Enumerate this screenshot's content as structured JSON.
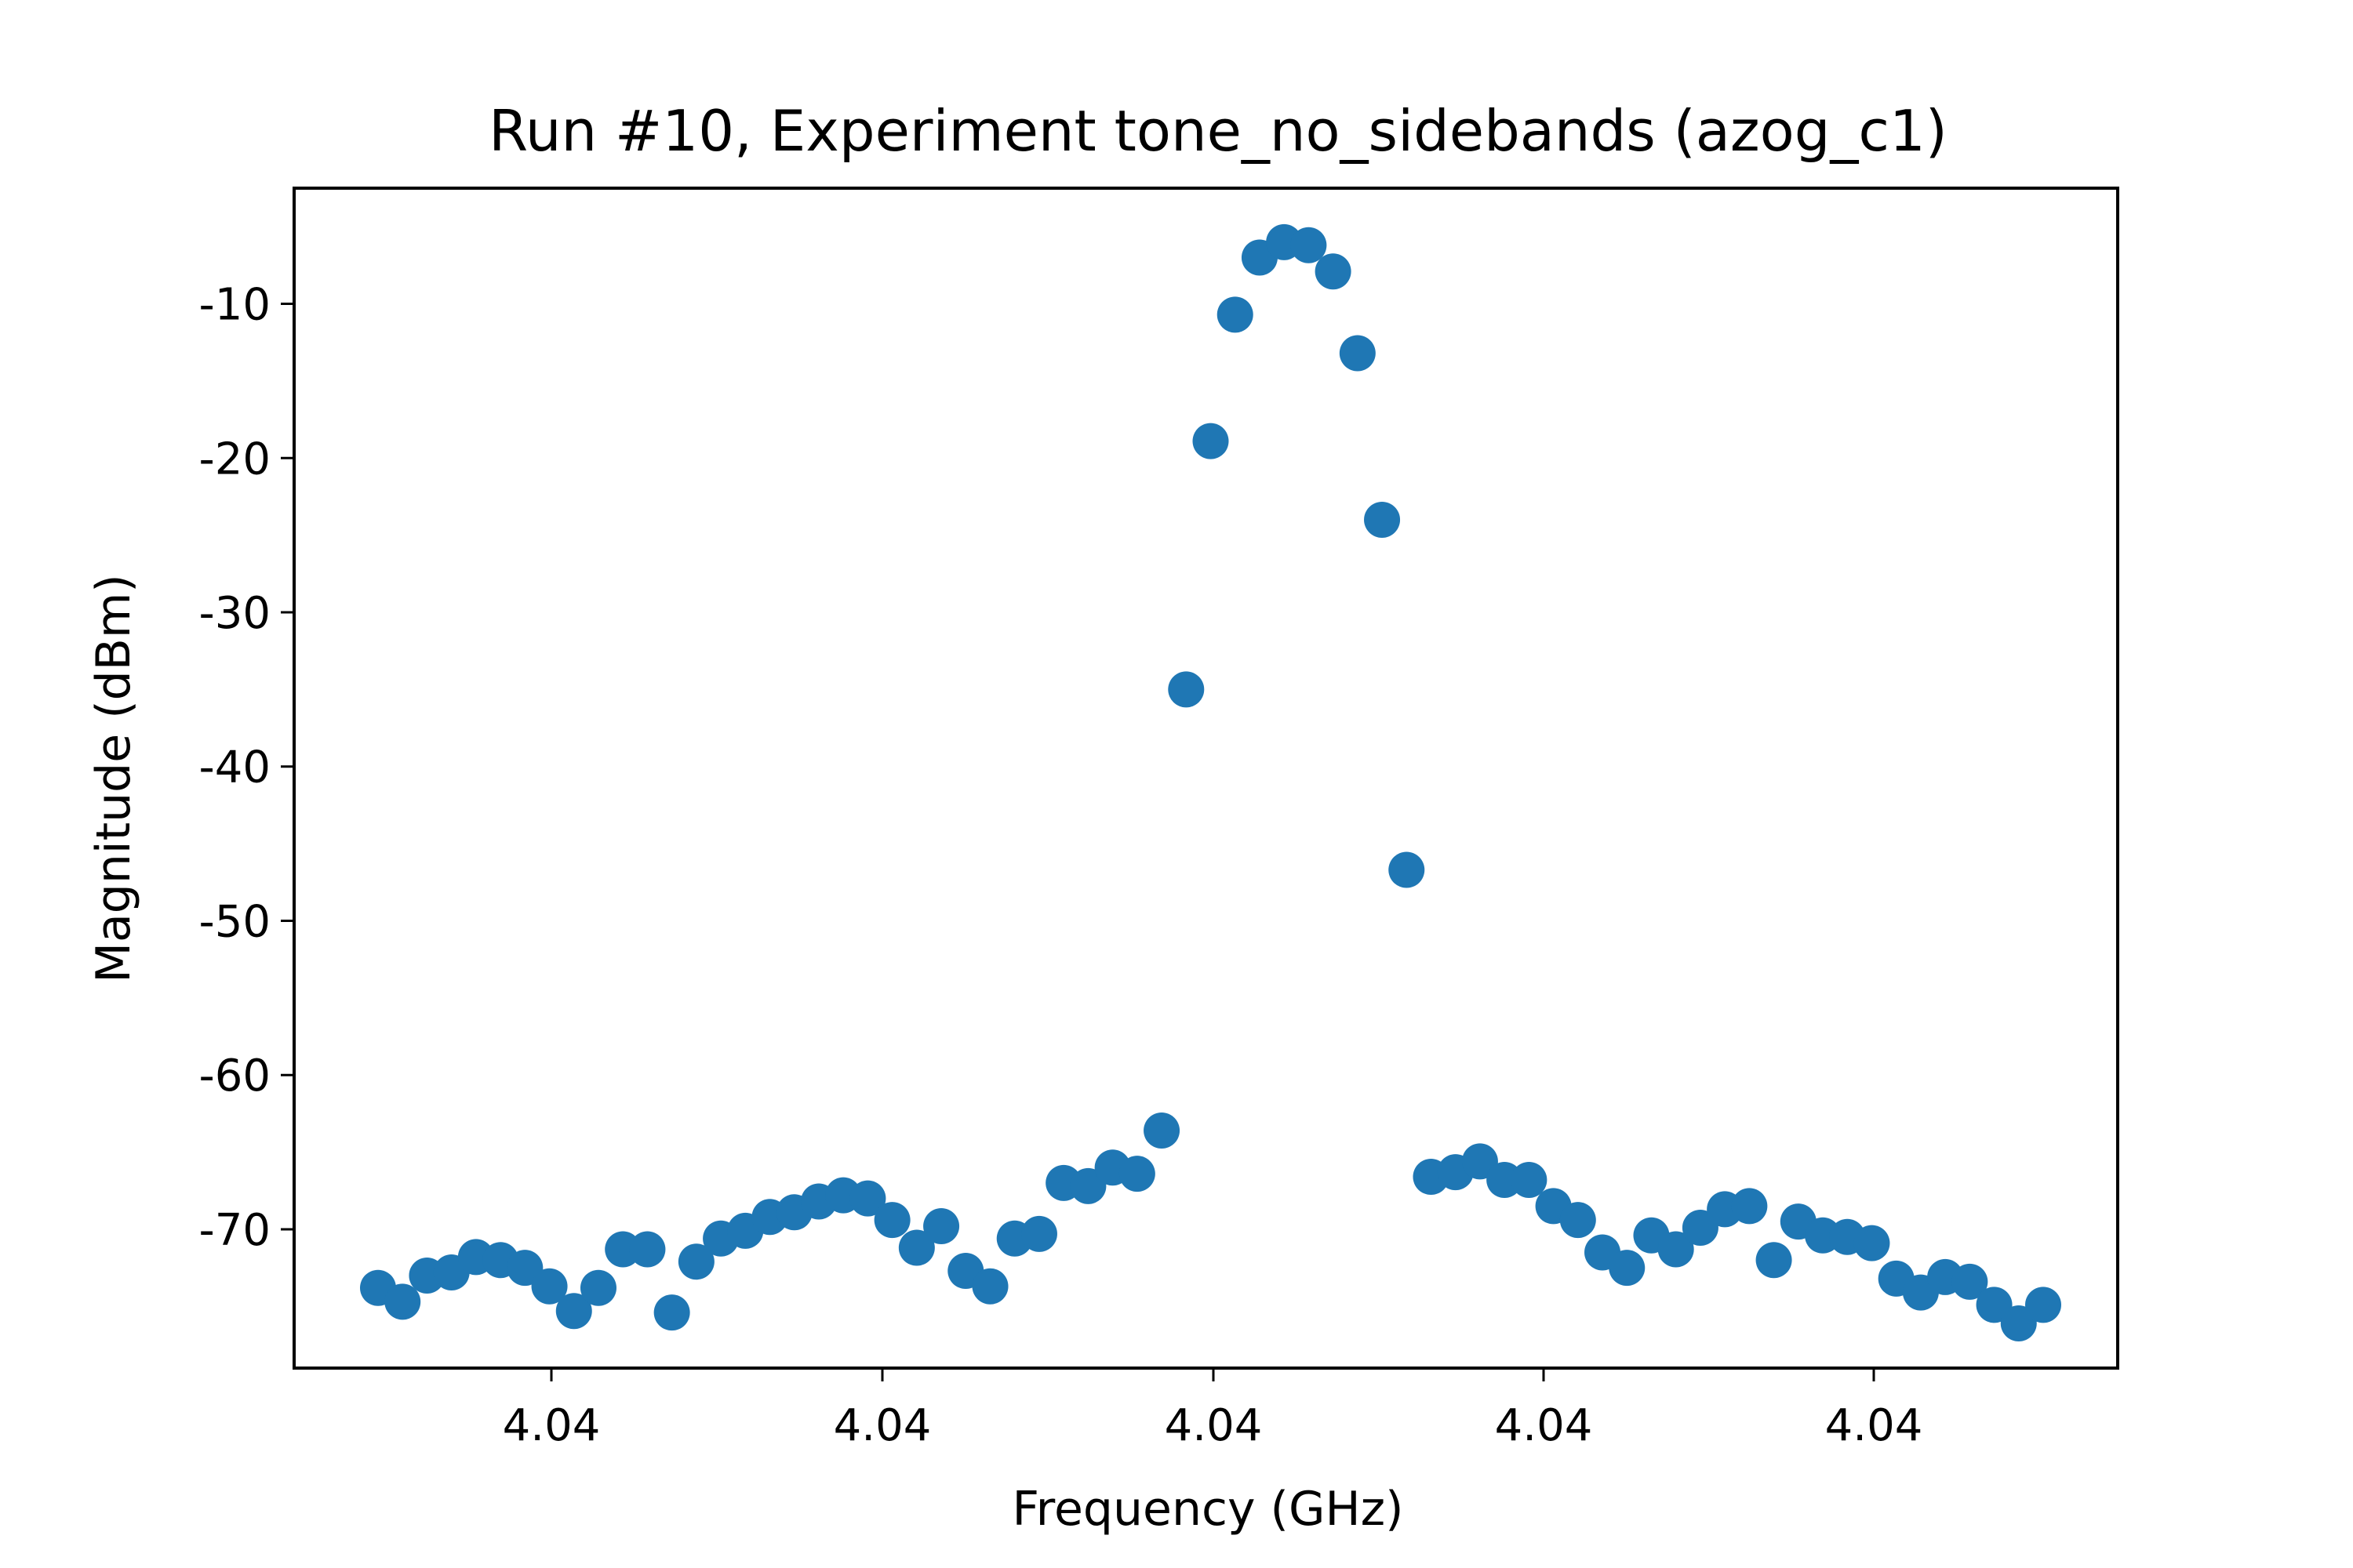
{
  "chart_data": {
    "type": "scatter",
    "title": "Run #10, Experiment tone_no_sidebands (azog_c1)",
    "xlabel": "Frequency (GHz)",
    "ylabel": "Magnitude (dBm)",
    "x_tick_labels": [
      "4.04",
      "4.04",
      "4.04",
      "4.04",
      "4.04"
    ],
    "y_ticks": [
      -10,
      -20,
      -30,
      -40,
      -50,
      -60,
      -70
    ],
    "y_tick_labels": [
      "-10",
      "-20",
      "-30",
      "-40",
      "-50",
      "-60",
      "-70"
    ],
    "ylim": [
      -79,
      -2.5
    ],
    "grid": false,
    "legend": "none",
    "marker_color": "#1f77b4",
    "series": [
      {
        "y": [
          -73.8,
          -74.7,
          -73.0,
          -72.8,
          -71.8,
          -72.0,
          -72.5,
          -73.7,
          -75.3,
          -73.8,
          -71.3,
          -71.3,
          -75.4,
          -72.1,
          -70.6,
          -70.1,
          -69.2,
          -68.9,
          -68.2,
          -67.8,
          -68.0,
          -69.4,
          -71.2,
          -69.8,
          -72.7,
          -73.7,
          -70.6,
          -70.3,
          -67.0,
          -67.2,
          -66.0,
          -66.4,
          -63.6,
          -35.0,
          -18.9,
          -10.7,
          -7.0,
          -6.0,
          -6.2,
          -7.9,
          -13.2,
          -24.0,
          -46.7,
          -66.6,
          -66.3,
          -65.6,
          -66.8,
          -66.8,
          -68.5,
          -69.4,
          -71.5,
          -72.5,
          -70.4,
          -71.3,
          -69.9,
          -68.7,
          -68.5,
          -72.0,
          -69.5,
          -70.4,
          -70.5,
          -70.9,
          -73.2,
          -74.1,
          -73.1,
          -73.4,
          -74.9,
          -76.1,
          -74.9
        ]
      }
    ]
  }
}
